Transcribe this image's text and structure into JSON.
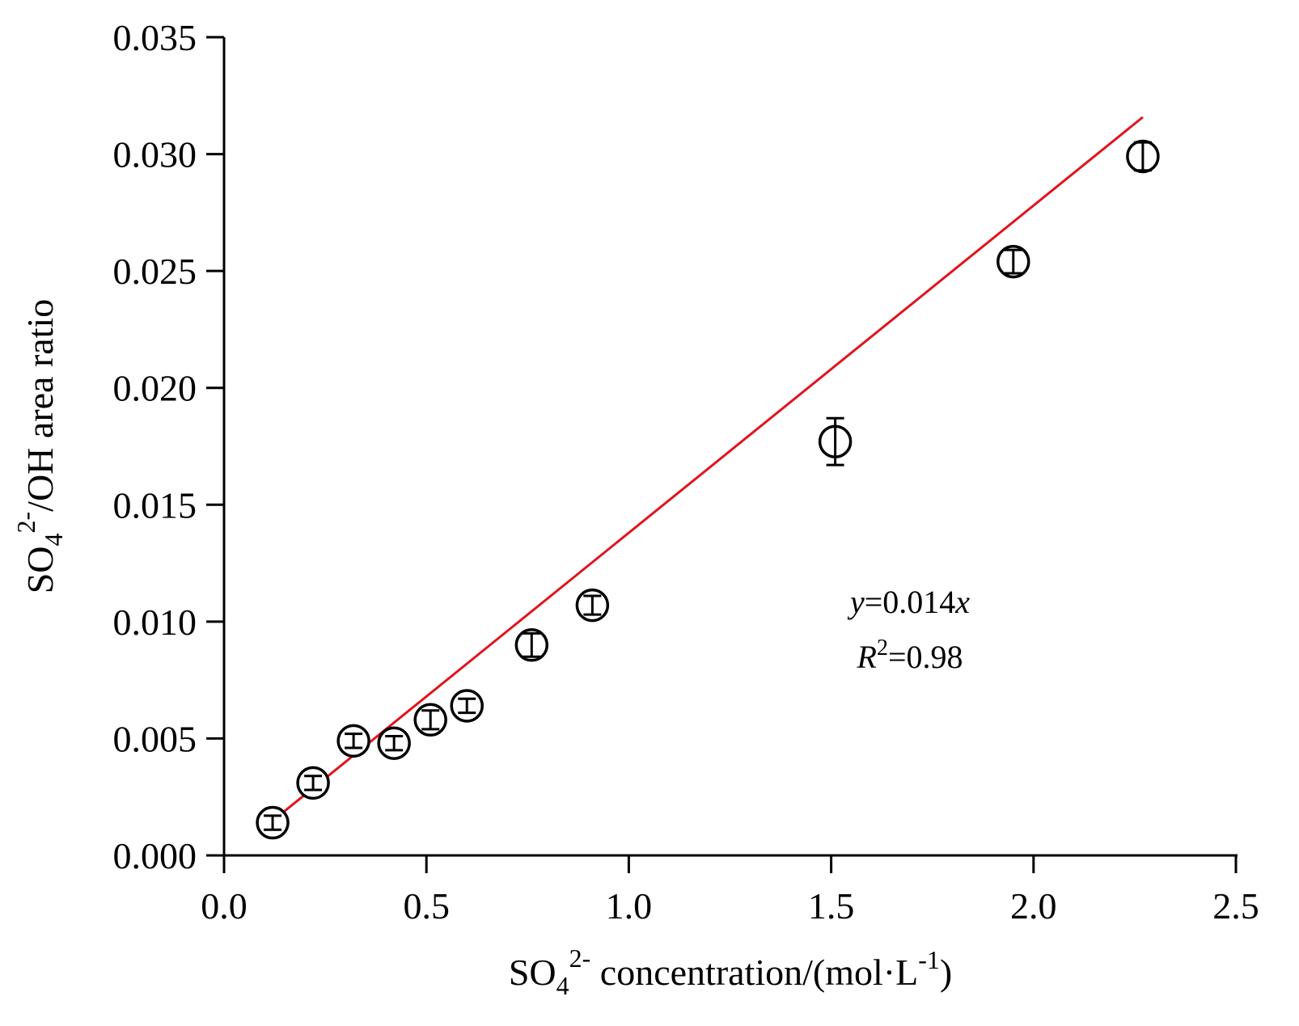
{
  "chart_data": {
    "type": "scatter",
    "xlim": [
      0.0,
      2.5
    ],
    "ylim": [
      0.0,
      0.035
    ],
    "x_ticks": [
      "0.0",
      "0.5",
      "1.0",
      "1.5",
      "2.0",
      "2.5"
    ],
    "y_ticks": [
      "0.000",
      "0.005",
      "0.010",
      "0.015",
      "0.020",
      "0.025",
      "0.030",
      "0.035"
    ],
    "xlabel": {
      "prefix": "SO",
      "sub": "4",
      "sup": "2-",
      "middle": " concentration/(mol·L",
      "sup2": "-1",
      "suffix": ")"
    },
    "ylabel": {
      "prefix": "SO",
      "sub": "4",
      "sup": "2-",
      "suffix": "/OH area ratio"
    },
    "points": [
      {
        "x": 0.12,
        "y": 0.0014,
        "err": 0.0003
      },
      {
        "x": 0.22,
        "y": 0.0031,
        "err": 0.0003
      },
      {
        "x": 0.32,
        "y": 0.0049,
        "err": 0.0003
      },
      {
        "x": 0.42,
        "y": 0.0048,
        "err": 0.0003
      },
      {
        "x": 0.51,
        "y": 0.0058,
        "err": 0.0004
      },
      {
        "x": 0.6,
        "y": 0.0064,
        "err": 0.0003
      },
      {
        "x": 0.76,
        "y": 0.009,
        "err": 0.0005
      },
      {
        "x": 0.91,
        "y": 0.0107,
        "err": 0.0004
      },
      {
        "x": 1.51,
        "y": 0.0177,
        "err": 0.001
      },
      {
        "x": 1.95,
        "y": 0.0254,
        "err": 0.0005
      },
      {
        "x": 2.27,
        "y": 0.0299,
        "err": 0.0006
      }
    ],
    "fit": {
      "slope": 0.014,
      "intercept": -0.0002,
      "x_range": [
        0.12,
        2.27
      ],
      "color": "#e0141e"
    },
    "marker_color": "#000000",
    "equation": {
      "y_var": "y",
      "y_rest": "=0.014",
      "x_var": "x",
      "r_var": "R",
      "r_sup": "2",
      "r_rest": "=0.98"
    },
    "grid": false
  }
}
